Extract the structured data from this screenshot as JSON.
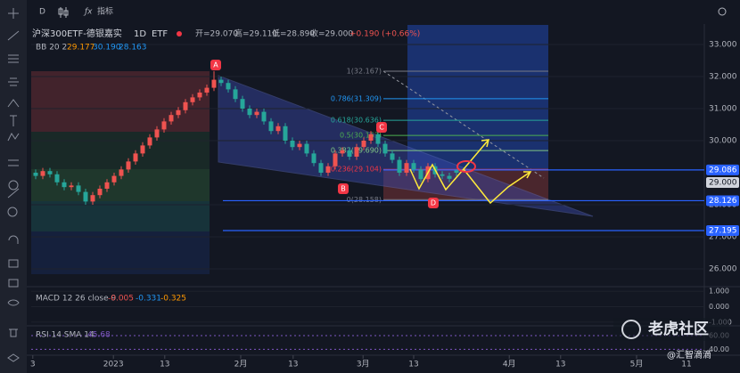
{
  "toolbar": {
    "interval": "D",
    "indicators": "指标"
  },
  "chart_data": {
    "type": "candlestick",
    "title": "沪深300ETF-德银嘉实",
    "timeframe": "1D",
    "exchange": "ETF",
    "legend": {
      "open": "开=29.070",
      "high": "高=29.110",
      "low": "低=28.890",
      "close": "收=29.000",
      "change": "+0.190 (+0.66%)"
    },
    "bb": {
      "name": "BB 20 2",
      "basis": "29.177",
      "upper": "30.190",
      "lower": "28.163"
    },
    "up_color": "#ef5350",
    "down_color": "#26a69a",
    "open": [
      29.0,
      28.9,
      29.05,
      28.95,
      28.7,
      28.55,
      28.6,
      28.4,
      28.1,
      28.3,
      28.5,
      28.7,
      28.9,
      29.1,
      29.35,
      29.6,
      29.85,
      30.1,
      30.35,
      30.6,
      30.8,
      30.95,
      31.2,
      31.35,
      31.5,
      31.65,
      31.9,
      31.8,
      31.6,
      31.3,
      31.0,
      30.8,
      30.9,
      30.6,
      30.3,
      30.45,
      30.0,
      29.8,
      29.9,
      29.6,
      29.3,
      29.0,
      29.2,
      29.6,
      29.7,
      29.5,
      29.8,
      30.0,
      30.2,
      29.9,
      29.6,
      29.4,
      29.0,
      29.3,
      29.1,
      28.8,
      29.2,
      28.95,
      28.9,
      29.07
    ],
    "high": [
      29.1,
      29.15,
      29.15,
      29.05,
      28.8,
      28.7,
      28.7,
      28.5,
      28.4,
      28.6,
      28.8,
      29.0,
      29.2,
      29.45,
      29.7,
      29.95,
      30.2,
      30.45,
      30.7,
      30.9,
      31.05,
      31.3,
      31.45,
      31.6,
      31.75,
      32.17,
      32.0,
      31.9,
      31.7,
      31.4,
      31.1,
      31.0,
      31.0,
      30.7,
      30.55,
      30.55,
      30.1,
      30.0,
      30.0,
      29.7,
      29.4,
      29.3,
      29.7,
      29.8,
      29.8,
      29.9,
      30.1,
      30.3,
      30.3,
      30.0,
      29.7,
      29.5,
      29.4,
      29.4,
      29.2,
      29.3,
      29.3,
      29.05,
      29.0,
      29.11
    ],
    "low": [
      28.8,
      28.8,
      28.85,
      28.6,
      28.45,
      28.45,
      28.3,
      28.0,
      28.0,
      28.2,
      28.4,
      28.6,
      28.8,
      29.0,
      29.25,
      29.5,
      29.75,
      30.0,
      30.25,
      30.5,
      30.7,
      30.85,
      31.1,
      31.25,
      31.4,
      31.55,
      31.7,
      31.5,
      31.2,
      30.9,
      30.7,
      30.7,
      30.5,
      30.2,
      30.2,
      29.9,
      29.7,
      29.7,
      29.5,
      29.2,
      28.9,
      28.9,
      29.1,
      29.5,
      29.4,
      29.4,
      29.7,
      29.9,
      29.8,
      29.5,
      29.3,
      28.9,
      28.9,
      29.0,
      28.7,
      28.7,
      28.85,
      28.8,
      28.7,
      28.89
    ],
    "close": [
      28.9,
      29.05,
      28.95,
      28.7,
      28.55,
      28.6,
      28.4,
      28.1,
      28.3,
      28.5,
      28.7,
      28.9,
      29.1,
      29.35,
      29.6,
      29.85,
      30.1,
      30.35,
      30.6,
      30.8,
      30.95,
      31.2,
      31.35,
      31.5,
      31.65,
      31.9,
      31.8,
      31.6,
      31.3,
      31.0,
      30.8,
      30.9,
      30.6,
      30.3,
      30.45,
      30.0,
      29.8,
      29.9,
      29.6,
      29.3,
      29.0,
      29.2,
      29.6,
      29.7,
      29.5,
      29.8,
      30.0,
      30.2,
      29.9,
      29.6,
      29.4,
      29.0,
      29.3,
      29.1,
      28.8,
      29.2,
      28.95,
      28.9,
      28.81,
      29.0
    ],
    "xlim": [
      -0.625,
      93.75
    ],
    "xticks": [
      {
        "value": -0.4,
        "label": "3"
      },
      {
        "value": 10.9,
        "label": "2023"
      },
      {
        "value": 18.1,
        "label": "13"
      },
      {
        "value": 28.75,
        "label": "2月"
      },
      {
        "value": 36.1,
        "label": "13"
      },
      {
        "value": 45.9,
        "label": "3月"
      },
      {
        "value": 53,
        "label": "13"
      },
      {
        "value": 66.4,
        "label": "4月"
      },
      {
        "value": 73.6,
        "label": "13"
      },
      {
        "value": 84.25,
        "label": "5月"
      },
      {
        "value": 91.25,
        "label": "11"
      }
    ],
    "ylim": [
      25.444,
      33.611
    ],
    "yticks": [
      {
        "value": 33,
        "label": "33.000"
      },
      {
        "value": 32,
        "label": "32.000"
      },
      {
        "value": 31,
        "label": "31.000"
      },
      {
        "value": 30,
        "label": "30.000"
      },
      {
        "value": 28,
        "label": "28.000"
      },
      {
        "value": 27,
        "label": "27.000"
      },
      {
        "value": 26,
        "label": "26.000"
      }
    ],
    "fib_levels": [
      {
        "label": "1(32.167)",
        "value": 32.167
      },
      {
        "label": "0.786(31.309)",
        "value": 31.309
      },
      {
        "label": "0.618(30.636)",
        "value": 30.636
      },
      {
        "label": "0.5(30.163)",
        "value": 30.163
      },
      {
        "label": "0.382(29.690)",
        "value": 29.69
      },
      {
        "label": "0.236(29.104)",
        "value": 29.104
      },
      {
        "label": "0(28.158)",
        "value": 28.158
      }
    ],
    "price_lines": [
      29.086,
      28.126,
      27.195
    ],
    "last_price": {
      "value": 29.0,
      "label": "29.000"
    },
    "annotations": [
      "A",
      "B",
      "C",
      "D"
    ],
    "macd": {
      "name": "MACD 12 26 close 9",
      "hist": "-0.005",
      "macd": "-0.331",
      "signal": "-0.325",
      "ylim": [
        -1.235,
        1.294
      ],
      "yticks": [
        {
          "value": 1,
          "label": "1.000"
        },
        {
          "value": 0,
          "label": "0.000"
        },
        {
          "value": -1,
          "label": "-1.000"
        }
      ]
    },
    "rsi": {
      "name": "RSI 14 SMA 14",
      "value": "45.68",
      "ylim": [
        31.4,
        74.3
      ],
      "yticks": [
        {
          "value": 60,
          "label": "60.00"
        },
        {
          "value": 40,
          "label": "40.00"
        }
      ]
    }
  },
  "watermark": {
    "brand": "老虎社区",
    "author": "@汇智滴滴"
  }
}
